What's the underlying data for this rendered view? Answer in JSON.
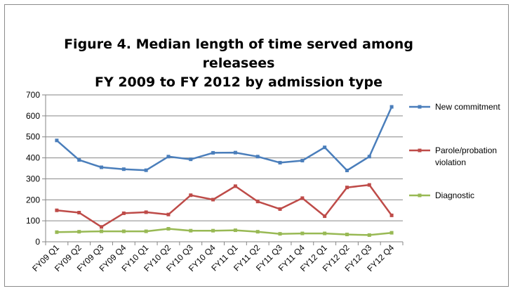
{
  "chart_data": {
    "type": "line",
    "title_line1": "Figure 4.  Median length of time served among releasees",
    "title_line2": "FY 2009 to FY 2012 by admission type",
    "xlabel": "",
    "ylabel": "",
    "ylim": [
      0,
      700
    ],
    "yticks": [
      0,
      100,
      200,
      300,
      400,
      500,
      600,
      700
    ],
    "grid": true,
    "legend_position": "right",
    "categories": [
      "FY09 Q1",
      "FY09 Q2",
      "FY09 Q3",
      "FY09 Q4",
      "FY10 Q1",
      "FY10 Q2",
      "FY10 Q3",
      "FY10 Q4",
      "FY11 Q1",
      "FY11 Q2",
      "FY11 Q3",
      "FY11 Q4",
      "FY12 Q1",
      "FY12 Q2",
      "FY12 Q3",
      "FY12 Q4"
    ],
    "series": [
      {
        "name": "New commitment",
        "color": "#4a7ebb",
        "legend_lines": [
          "New commitment"
        ],
        "values": [
          483,
          390,
          355,
          346,
          341,
          406,
          393,
          424,
          425,
          406,
          377,
          387,
          450,
          340,
          406,
          643
        ]
      },
      {
        "name": "Parole/probation violation",
        "color": "#be4b48",
        "legend_lines": [
          "Parole/probation",
          "violation"
        ],
        "values": [
          150,
          139,
          71,
          136,
          141,
          130,
          222,
          201,
          265,
          192,
          156,
          208,
          122,
          259,
          271,
          126
        ]
      },
      {
        "name": "Diagnostic",
        "color": "#98b954",
        "legend_lines": [
          "Diagnostic"
        ],
        "values": [
          46,
          48,
          50,
          50,
          50,
          62,
          53,
          53,
          55,
          48,
          38,
          40,
          40,
          35,
          32,
          43
        ]
      }
    ]
  }
}
